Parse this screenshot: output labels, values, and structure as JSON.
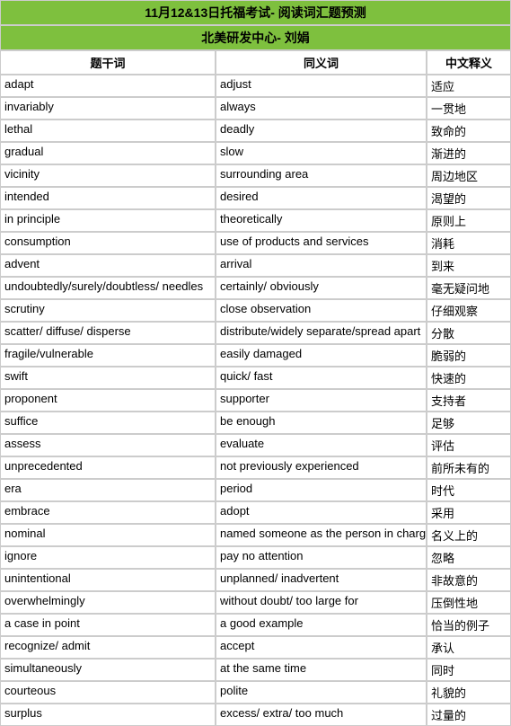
{
  "title": {
    "line1": "11月12&13日托福考试- 阅读词汇题预测",
    "line2": "北美研发中心- 刘娟"
  },
  "headers": {
    "col1": "题干词",
    "col2": "同义词",
    "col3": "中文释义"
  },
  "colors": {
    "header_bg": "#7ec03e",
    "border": "#cccccc",
    "bg": "#ffffff"
  },
  "rows": [
    {
      "w": "adapt",
      "s": "adjust",
      "c": "适应"
    },
    {
      "w": "invariably",
      "s": "always",
      "c": "一贯地"
    },
    {
      "w": "lethal",
      "s": "deadly",
      "c": "致命的"
    },
    {
      "w": "gradual",
      "s": "slow",
      "c": "渐进的"
    },
    {
      "w": "vicinity",
      "s": "surrounding area",
      "c": "周边地区"
    },
    {
      "w": "intended",
      "s": "desired",
      "c": "渴望的"
    },
    {
      "w": "in principle",
      "s": "theoretically",
      "c": "原则上"
    },
    {
      "w": "consumption",
      "s": "use of products and services",
      "c": "消耗"
    },
    {
      "w": "advent",
      "s": "arrival",
      "c": "到来"
    },
    {
      "w": "undoubtedly/surely/doubtless/ needles",
      "s": "certainly/ obviously",
      "c": "毫无疑问地"
    },
    {
      "w": "scrutiny",
      "s": "close observation",
      "c": "仔细观察"
    },
    {
      "w": "scatter/ diffuse/ disperse",
      "s": "distribute/widely separate/spread apart",
      "c": "分散"
    },
    {
      "w": "fragile/vulnerable",
      "s": "easily damaged",
      "c": "脆弱的"
    },
    {
      "w": "swift",
      "s": "quick/ fast",
      "c": "快速的"
    },
    {
      "w": "proponent",
      "s": "supporter",
      "c": "支持者"
    },
    {
      "w": "suffice",
      "s": "be enough",
      "c": "足够"
    },
    {
      "w": "assess",
      "s": "evaluate",
      "c": "评估"
    },
    {
      "w": "unprecedented",
      "s": "not previously experienced",
      "c": "前所未有的"
    },
    {
      "w": "era",
      "s": "period",
      "c": "时代"
    },
    {
      "w": "embrace",
      "s": "adopt",
      "c": "采用"
    },
    {
      "w": "nominal",
      "s": "named someone as the person in charge",
      "c": "名义上的"
    },
    {
      "w": "ignore",
      "s": "pay no attention",
      "c": "忽略"
    },
    {
      "w": "unintentional",
      "s": "unplanned/ inadvertent",
      "c": "非故意的"
    },
    {
      "w": "overwhelmingly",
      "s": "without doubt/ too large for",
      "c": "压倒性地"
    },
    {
      "w": "a case in point",
      "s": "a good example",
      "c": "恰当的例子"
    },
    {
      "w": "recognize/ admit",
      "s": "accept",
      "c": "承认"
    },
    {
      "w": "simultaneously",
      "s": "at the same time",
      "c": "同时"
    },
    {
      "w": "courteous",
      "s": "polite",
      "c": "礼貌的"
    },
    {
      "w": "surplus",
      "s": "excess/ extra/ too much",
      "c": "过量的"
    }
  ]
}
